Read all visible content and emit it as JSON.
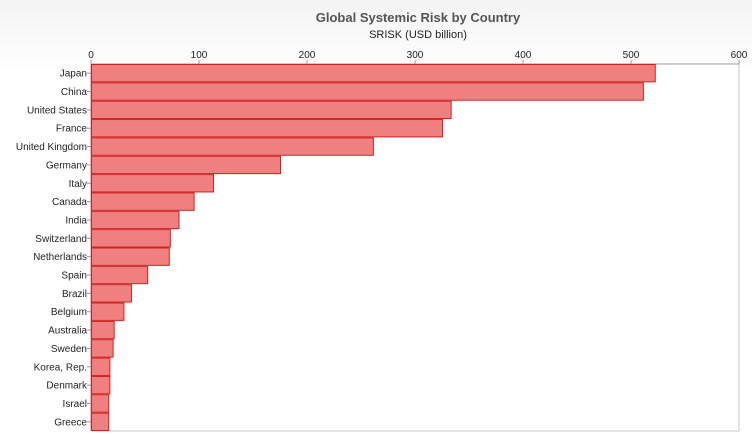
{
  "chart_data": {
    "type": "bar",
    "orientation": "horizontal",
    "title": "Global Systemic Risk by Country",
    "subtitle": "SRISK (USD billion)",
    "categories": [
      "Japan",
      "China",
      "United States",
      "France",
      "United Kingdom",
      "Germany",
      "Italy",
      "Canada",
      "India",
      "Switzerland",
      "Netherlands",
      "Spain",
      "Brazil",
      "Belgium",
      "Australia",
      "Sweden",
      "Korea, Rep.",
      "Denmark",
      "Israel",
      "Greece"
    ],
    "values": [
      522,
      511,
      333,
      325,
      261,
      175,
      113,
      95,
      81,
      73,
      72,
      52,
      37,
      30,
      21,
      20,
      17,
      17,
      16,
      16
    ],
    "xlim": [
      0,
      600
    ],
    "xticks": [
      0,
      100,
      200,
      300,
      400,
      500,
      600
    ],
    "axis_position": "top",
    "grid": false,
    "legend": false,
    "colors": {
      "bar_fill": "#f08080",
      "bar_stroke": "#cc2222",
      "axis": "#999999"
    }
  }
}
